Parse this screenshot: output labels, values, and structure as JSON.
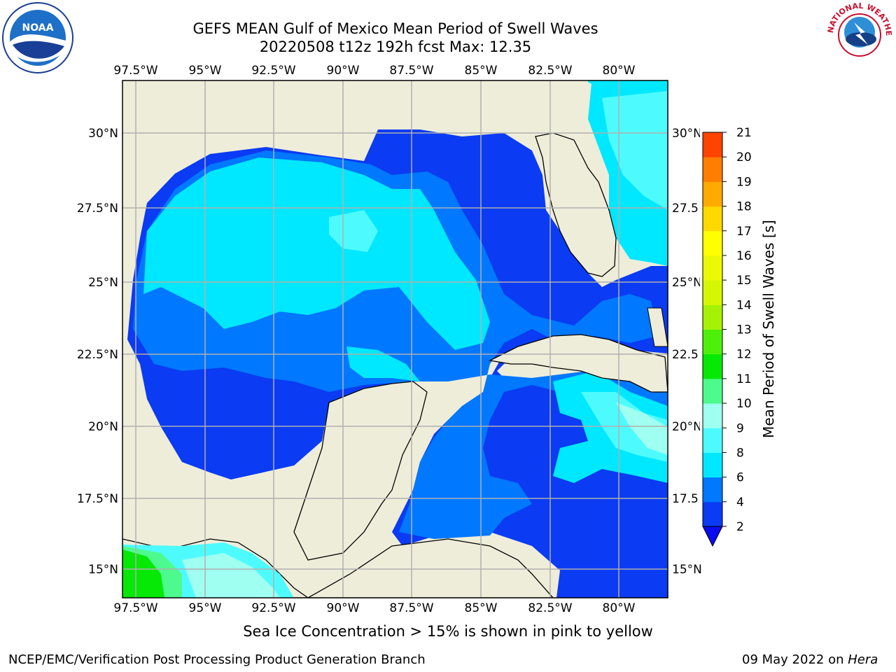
{
  "header": {
    "title_line1": "GEFS MEAN Gulf of Mexico Mean Period of Swell Waves",
    "title_line2": "20220508 t12z 192h fcst   Max: 12.35"
  },
  "logos": {
    "left": "noaa-logo",
    "left_text": "NOAA",
    "right": "nws-logo",
    "right_text": "NATIONAL WEATHER SERVICE"
  },
  "map": {
    "lon_labels": [
      "97.5°W",
      "95°W",
      "92.5°W",
      "90°W",
      "87.5°W",
      "85°W",
      "82.5°W",
      "80°W"
    ],
    "lat_labels": [
      "30°N",
      "27.5°N",
      "25°N",
      "22.5°N",
      "20°N",
      "17.5°N",
      "15°N"
    ],
    "lat_labels_right": [
      "30°N",
      "27.5",
      "25°N",
      "22.5",
      "20°N",
      "17.5",
      "15°N"
    ],
    "land_color": "#eeedda",
    "grid_color": "#b0b0b0"
  },
  "colorbar": {
    "label": "Mean Period of Swell Waves [s]",
    "ticks": [
      "2",
      "4",
      "6",
      "8",
      "9",
      "10",
      "11",
      "12",
      "13",
      "14",
      "15",
      "16",
      "17",
      "18",
      "19",
      "20",
      "21"
    ],
    "colors": [
      "#0b3bf2",
      "#0078ff",
      "#00e8ff",
      "#4dfbff",
      "#9ffff0",
      "#4dfa8e",
      "#06e806",
      "#4ef00b",
      "#a6f207",
      "#d6f704",
      "#ecf904",
      "#ffff00",
      "#ffd800",
      "#ffaa00",
      "#ff7e00",
      "#ff4300",
      "#ff0000"
    ],
    "extend_color": "#0b0bf0"
  },
  "footer": {
    "subtitle": "Sea Ice Concentration > 15% is shown in pink to yellow",
    "left": "NCEP/EMC/Verification Post Processing Product Generation Branch",
    "right_prefix": "09 May 2022 on ",
    "right_host": "Hera"
  }
}
